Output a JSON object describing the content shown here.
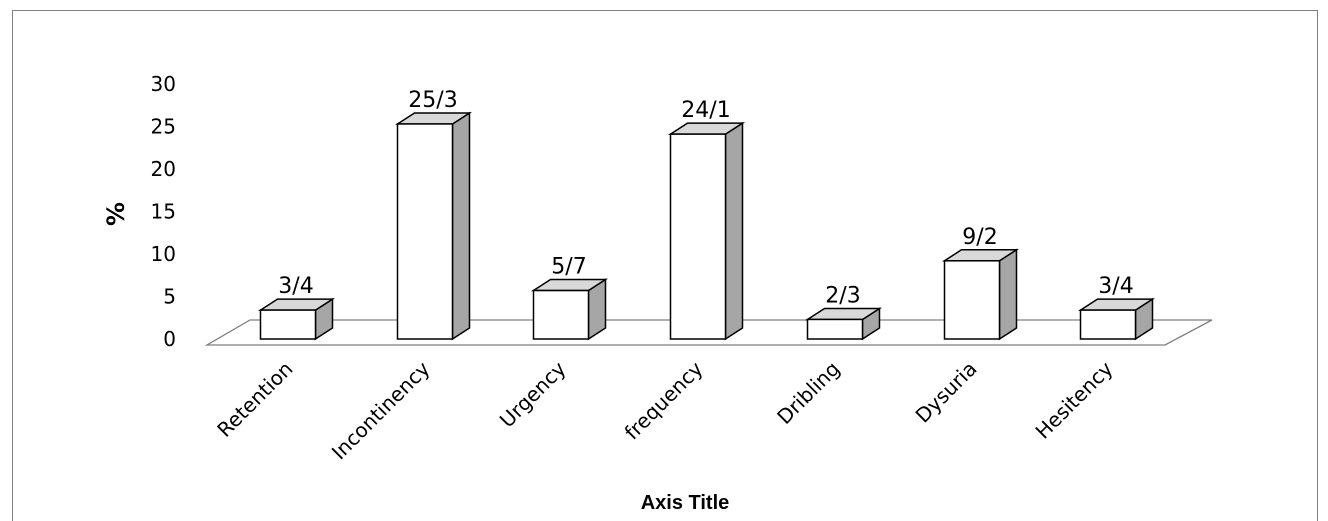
{
  "chart_data": {
    "type": "bar",
    "categories": [
      "Retention",
      "Incontinency",
      "Urgency",
      "frequency",
      "Dribling",
      "Dysuria",
      "Hesitency"
    ],
    "values": [
      3.4,
      25.3,
      5.7,
      24.1,
      2.3,
      9.2,
      3.4
    ],
    "data_labels": [
      "3/4",
      "25/3",
      "5/7",
      "24/1",
      "2/3",
      "9/2",
      "3/4"
    ],
    "ylabel": "%",
    "xlabel": "Axis Title",
    "ylim": [
      0,
      30
    ],
    "yticks": [
      "0",
      "5",
      "10",
      "15",
      "20",
      "25",
      "30"
    ],
    "style": "3d-column",
    "colors": {
      "front": "#ffffff",
      "side": "#a6a6a6",
      "top": "#d9d9d9",
      "stroke": "#000000"
    }
  }
}
